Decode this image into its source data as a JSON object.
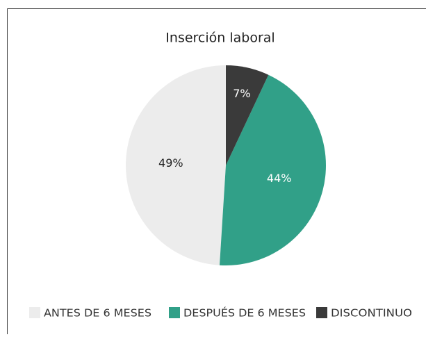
{
  "chart_data": {
    "type": "pie",
    "title": "Inserción laboral",
    "categories": [
      "ANTES DE 6 MESES",
      "DESPUÉS DE 6 MESES",
      "DISCONTINUO"
    ],
    "values": [
      49,
      44,
      7
    ],
    "value_labels": [
      "49%",
      "44%",
      "7%"
    ],
    "colors": [
      "#ececec",
      "#31a088",
      "#3a3a3a"
    ],
    "legend": "bottom"
  }
}
